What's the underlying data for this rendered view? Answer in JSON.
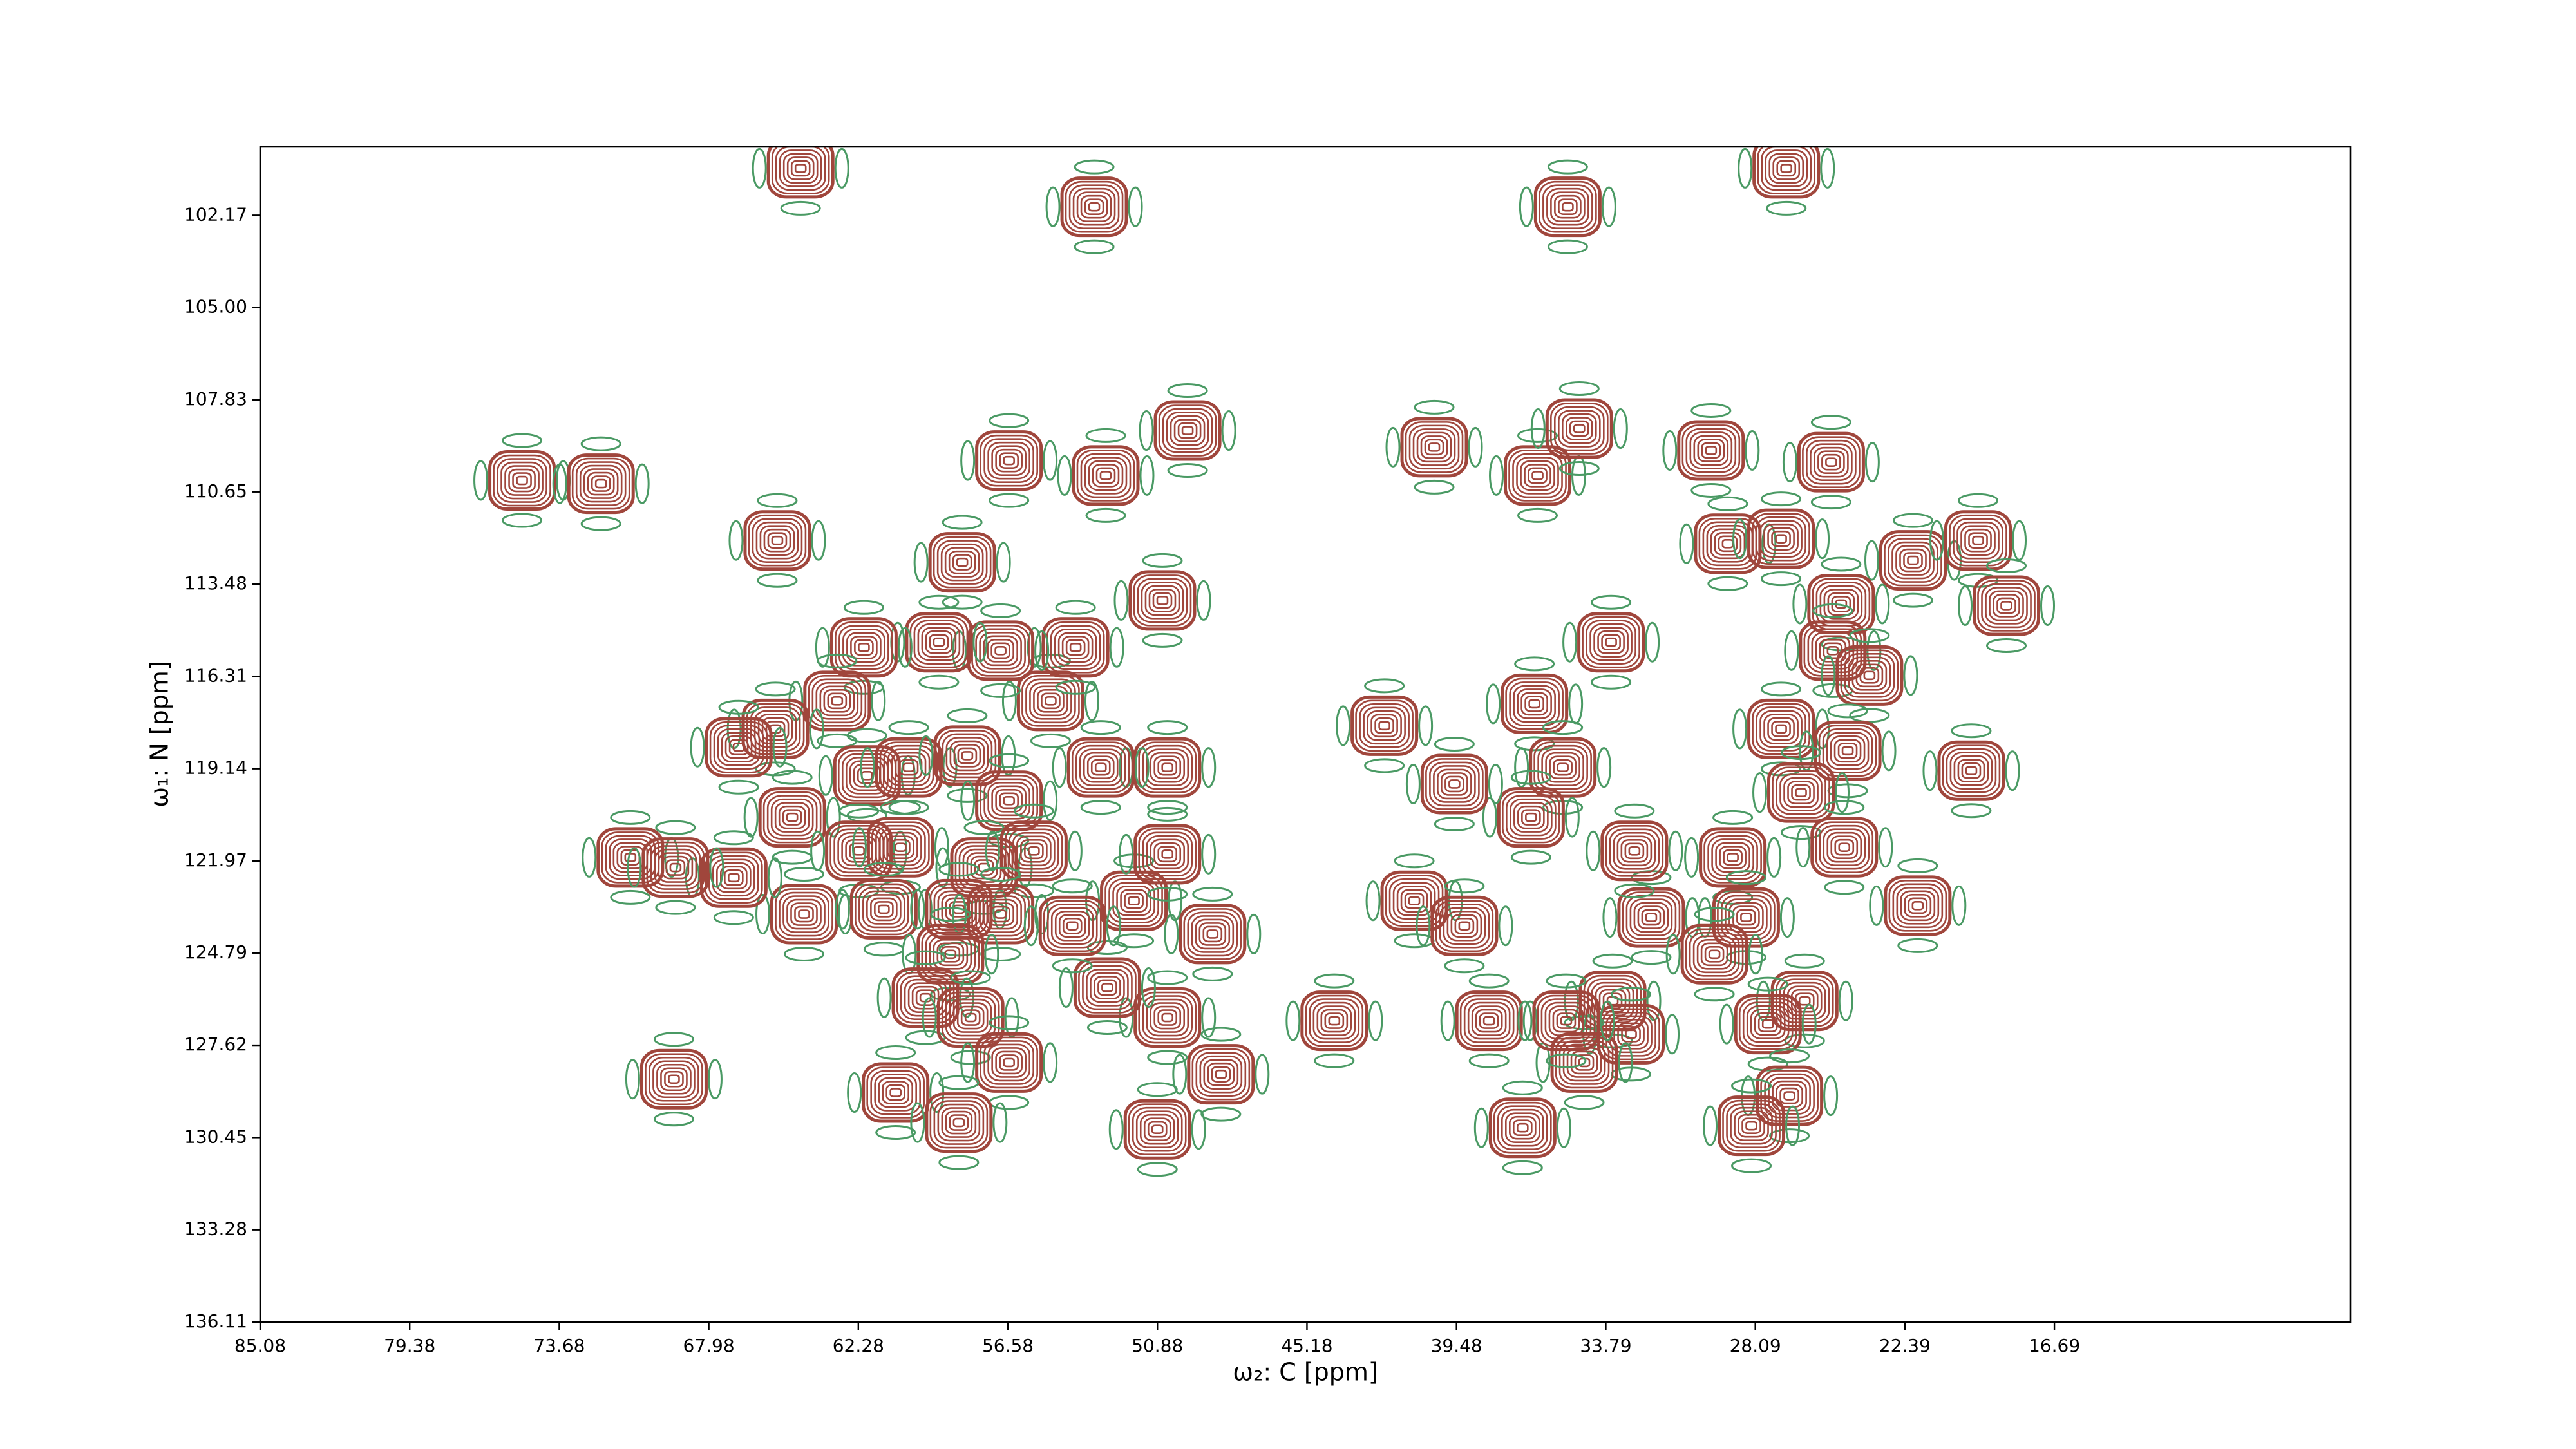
{
  "chart_data": {
    "type": "contour",
    "xlabel": "ω₂: C [ppm]",
    "ylabel": "ω₁: N [ppm]",
    "xlim": [
      85.08,
      5.4
    ],
    "ylim": [
      136.11,
      100.07
    ],
    "xticks": [
      85.08,
      79.38,
      73.68,
      67.98,
      62.28,
      56.58,
      50.88,
      45.18,
      39.48,
      33.79,
      28.09,
      22.39,
      16.69
    ],
    "yticks": [
      102.17,
      {
        "value": 105,
        "label": "105.00"
      },
      107.83,
      110.65,
      113.48,
      116.31,
      119.14,
      121.97,
      124.79,
      127.62,
      130.45,
      133.28,
      136.11
    ],
    "positive_color": "#a0463c",
    "negative_color": "#4a9a64",
    "peaks": {
      "x": [
        64.48,
        53.29,
        35.24,
        26.91,
        75.1,
        72.09,
        65.37,
        56.54,
        52.85,
        49.73,
        58.32,
        50.69,
        40.33,
        36.39,
        34.8,
        29.78,
        25.2,
        29.14,
        27.11,
        22.08,
        19.6,
        18.52,
        33.59,
        24.82,
        25.14,
        23.74,
        27.11,
        24.57,
        19.86,
        26.35,
        24.7,
        21.9,
        28.95,
        28.44,
        32.06,
        29.65,
        26.21,
        27.61,
        26.79,
        28.24,
        32.7,
        33.53,
        32.83,
        34.61,
        36.96,
        38.24,
        35.3,
        36.51,
        35.43,
        36.64,
        39.56,
        42.23,
        41.09,
        39.18,
        44.14,
        48.46,
        50.88,
        48.78,
        50.5,
        52.79,
        51.78,
        50.5,
        50.5,
        53.04,
        54.95,
        54.0,
        56.86,
        59.21,
        62.07,
        63.09,
        65.44,
        66.84,
        61.95,
        60.36,
        58.13,
        56.54,
        64.8,
        62.26,
        60.67,
        57.49,
        55.59,
        64.35,
        61.31,
        58.45,
        56.86,
        54.12,
        58.77,
        59.72,
        58.0,
        56.54,
        60.86,
        58.45,
        67.03,
        70.97,
        69.25,
        69.31
      ],
      "y": [
        100.73,
        101.91,
        101.91,
        100.73,
        110.3,
        110.4,
        112.14,
        109.69,
        110.15,
        108.77,
        112.81,
        113.98,
        109.28,
        110.15,
        108.71,
        109.38,
        109.74,
        112.24,
        112.09,
        112.75,
        112.14,
        114.14,
        115.26,
        114.09,
        115.52,
        116.28,
        117.92,
        118.59,
        119.2,
        119.87,
        121.55,
        123.34,
        121.86,
        123.7,
        123.7,
        124.83,
        126.26,
        126.97,
        129.17,
        130.09,
        121.66,
        126.26,
        127.28,
        128.15,
        130.15,
        126.87,
        126.87,
        117.15,
        119.1,
        120.63,
        119.61,
        117.82,
        123.19,
        123.96,
        126.87,
        128.51,
        130.2,
        124.21,
        126.77,
        125.85,
        123.19,
        119.1,
        121.76,
        119.1,
        117.06,
        115.42,
        115.52,
        115.26,
        115.42,
        117.06,
        117.92,
        118.48,
        119.35,
        119.1,
        118.74,
        120.12,
        120.63,
        121.66,
        121.55,
        122.17,
        121.66,
        123.6,
        123.45,
        123.45,
        123.6,
        123.96,
        124.83,
        126.16,
        126.77,
        128.15,
        129.07,
        129.99,
        122.48,
        121.86,
        122.17,
        128.66
      ]
    }
  }
}
